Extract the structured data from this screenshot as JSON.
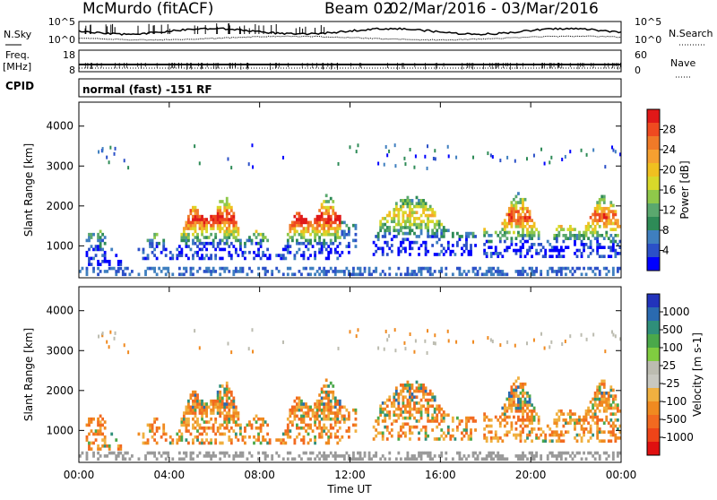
{
  "header": {
    "station": "McMurdo (fitACF)",
    "beam": "Beam 02",
    "date_range": "02/Mar/2016 - 03/Mar/2016"
  },
  "noise_panel": {
    "left_label": "N.Sky",
    "right_label": "N.Search",
    "left_ticks": [
      "10^5",
      "10^0"
    ],
    "right_ticks": [
      "10^5",
      "10^0"
    ]
  },
  "freq_panel": {
    "left_label_1": "Freq.",
    "left_label_2": "[MHz]",
    "right_label": "Nave",
    "left_ticks": [
      "18",
      "8"
    ],
    "right_ticks": [
      "60",
      "0"
    ]
  },
  "cpid": {
    "label": "CPID",
    "text": "normal (fast) -151 RF"
  },
  "chart_data": [
    {
      "type": "heatmap",
      "title": "",
      "xlabel": "Time UT",
      "ylabel": "Slant Range [km]",
      "x_ticks": [
        "00:00",
        "04:00",
        "08:00",
        "12:00",
        "16:00",
        "20:00",
        "00:00"
      ],
      "y_ticks": [
        "1000",
        "2000",
        "3000",
        "4000"
      ],
      "xlim": [
        0,
        24
      ],
      "ylim": [
        200,
        4600
      ],
      "colorbar": {
        "label": "Power [dB]",
        "ticks": [
          "4",
          "8",
          "12",
          "16",
          "20",
          "24",
          "28"
        ],
        "range": [
          0,
          30
        ],
        "colors": [
          "#0000ff",
          "#2b50c8",
          "#3f7fbf",
          "#2e8b57",
          "#5aa86e",
          "#8fc84a",
          "#d8d82a",
          "#f0c020",
          "#f5a030",
          "#f07a28",
          "#ef4a20",
          "#e01818"
        ]
      }
    },
    {
      "type": "heatmap",
      "title": "",
      "xlabel": "Time UT",
      "ylabel": "Slant Range [km]",
      "x_ticks": [
        "00:00",
        "04:00",
        "08:00",
        "12:00",
        "16:00",
        "20:00",
        "00:00"
      ],
      "y_ticks": [
        "1000",
        "2000",
        "3000",
        "4000"
      ],
      "xlim": [
        0,
        24
      ],
      "ylim": [
        200,
        4600
      ],
      "colorbar": {
        "label": "Velocity [m s-1]",
        "ticks": [
          "1000",
          "500",
          "100",
          "25",
          "-25",
          "-100",
          "-500",
          "-1000"
        ],
        "range": [
          -1200,
          1200
        ],
        "colors": [
          "#2233bb",
          "#2a6ab0",
          "#2f8f7a",
          "#4aa84a",
          "#80cc40",
          "#bcbcb0",
          "#c8c8c0",
          "#f0b040",
          "#f08a20",
          "#f26a20",
          "#ee4418",
          "#e01010"
        ]
      }
    }
  ],
  "colors": {
    "ground_scatter": "#9a9a9a"
  }
}
